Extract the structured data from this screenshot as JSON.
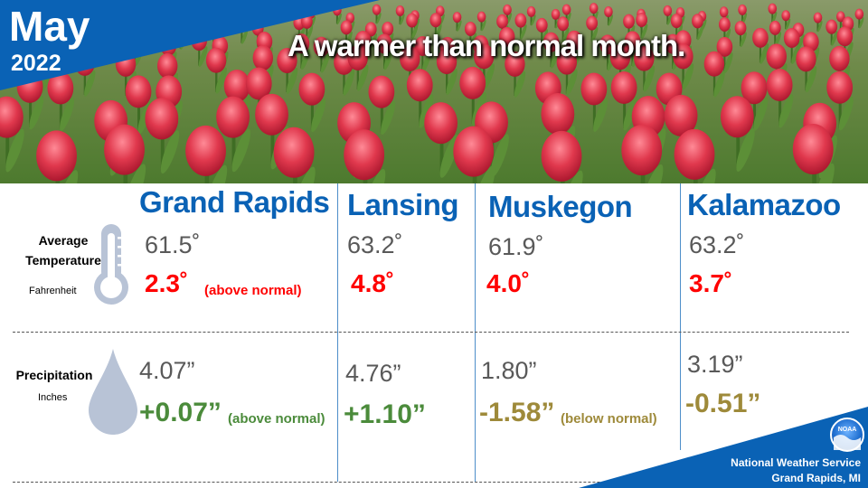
{
  "header": {
    "month": "May",
    "year": "2022",
    "headline": "A warmer than normal month."
  },
  "row_labels": {
    "temperature_line1": "Average",
    "temperature_line2": "Temperature",
    "temperature_unit": "Fahrenheit",
    "precipitation": "Precipitation",
    "precipitation_unit": "Inches"
  },
  "cities": [
    {
      "name": "Grand Rapids",
      "temp": "61.5˚",
      "temp_dep": "2.3˚",
      "temp_note": "(above normal)",
      "precip": "4.07”",
      "precip_dep": "+0.07”",
      "precip_note": "(above normal)"
    },
    {
      "name": "Lansing",
      "temp": "63.2˚",
      "temp_dep": "4.8˚",
      "temp_note": "",
      "precip": "4.76”",
      "precip_dep": "+1.10”",
      "precip_note": ""
    },
    {
      "name": "Muskegon",
      "temp": "61.9˚",
      "temp_dep": "4.0˚",
      "temp_note": "",
      "precip": "1.80”",
      "precip_dep": "-1.58”",
      "precip_note": "(below normal)"
    },
    {
      "name": "Kalamazoo",
      "temp": "63.2˚",
      "temp_dep": "3.7˚",
      "temp_note": "",
      "precip": "3.19”",
      "precip_dep": "-0.51”",
      "precip_note": ""
    }
  ],
  "footer": {
    "line1": "National Weather Service",
    "line2": "Grand Rapids, MI",
    "logo_text": "NOAA"
  },
  "colors": {
    "brand_blue": "#0a62b5",
    "above_normal_temp": "#ff0000",
    "above_normal_precip": "#4b8b3b",
    "below_normal_precip": "#9e8a3a",
    "value_gray": "#595959"
  }
}
